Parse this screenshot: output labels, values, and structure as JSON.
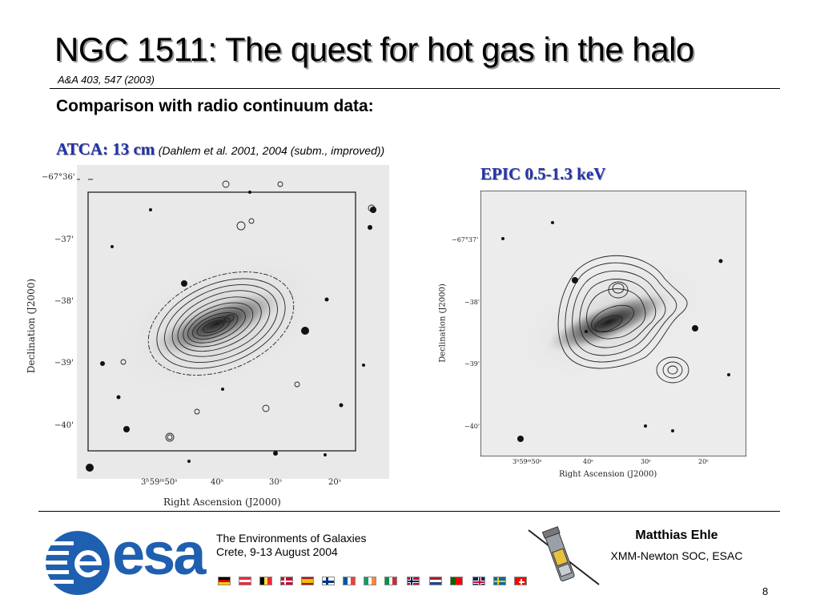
{
  "slide": {
    "title": "NGC 1511: The quest for hot gas in the halo",
    "citation": "A&A 403, 547 (2003)",
    "subtitle": "Comparison with radio continuum data:",
    "atca_label": "ATCA: 13 cm",
    "atca_reference": "(Dahlem et al. 2001, 2004 (subm., improved))",
    "epic_label": "EPIC 0.5-1.3 keV"
  },
  "left_image": {
    "dec_ticks": [
      "−67°36'",
      "−37'",
      "−38'",
      "−39'",
      "−40'"
    ],
    "ra_ticks": [
      "3ʰ59ᵐ50ˢ",
      "40ˢ",
      "30ˢ",
      "20ˢ"
    ],
    "ylabel": "Declination (J2000)",
    "xlabel": "Right Ascension (J2000)"
  },
  "right_image": {
    "dec_ticks": [
      "−67°37'",
      "−38'",
      "−39'",
      "−40'"
    ],
    "ra_ticks": [
      "3ʰ59ᵐ50ˢ",
      "40ˢ",
      "30ˢ",
      "20ˢ"
    ],
    "ylabel": "Declination (J2000)",
    "xlabel": "Right Ascension (J2000)"
  },
  "footer": {
    "logo_text": "esa",
    "conference": "The Environments of Galaxies",
    "location_date": "Crete, 9-13 August 2004",
    "author": "Matthias Ehle",
    "organization": "XMM-Newton SOC, ESAC",
    "page_number": "8",
    "flags": [
      "germany",
      "austria",
      "belgium",
      "denmark",
      "spain",
      "finland",
      "france",
      "ireland",
      "italy",
      "norway",
      "netherlands",
      "portugal",
      "united-kingdom",
      "sweden",
      "switzerland"
    ]
  },
  "colors": {
    "accent_blue": "#2233aa",
    "esa_blue": "#1f5fb0"
  }
}
